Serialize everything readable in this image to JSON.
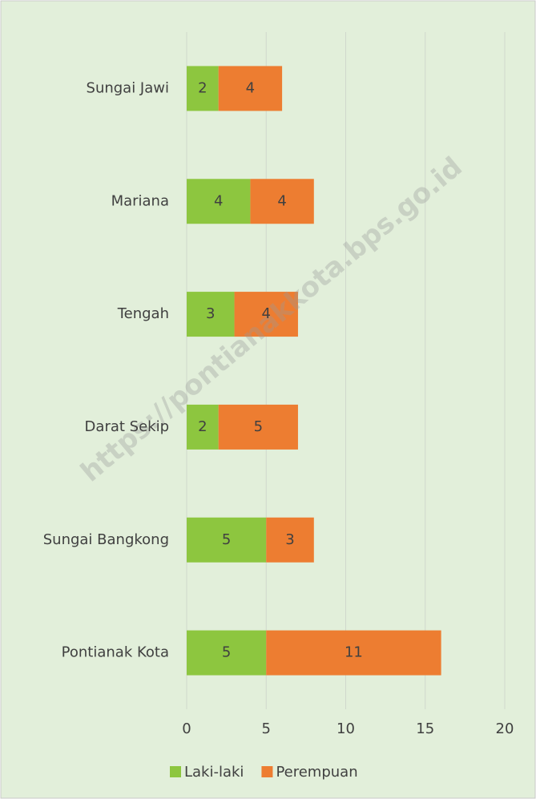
{
  "chart_data": {
    "type": "stacked_barh",
    "categories": [
      "Sungai Jawi",
      "Mariana",
      "Tengah",
      "Darat Sekip",
      "Sungai Bangkong",
      "Pontianak Kota"
    ],
    "series": [
      {
        "name": "Laki-laki",
        "color": "#8dc63f",
        "values": [
          2,
          4,
          3,
          2,
          5,
          5
        ]
      },
      {
        "name": "Perempuan",
        "color": "#ed7d31",
        "values": [
          4,
          4,
          4,
          5,
          3,
          11
        ]
      }
    ],
    "xlim": [
      0,
      20
    ],
    "xticks": [
      0,
      5,
      10,
      15,
      20
    ],
    "grid": true,
    "legend": "bottom",
    "watermark": "https://pontianakkota.bps.go.id"
  }
}
